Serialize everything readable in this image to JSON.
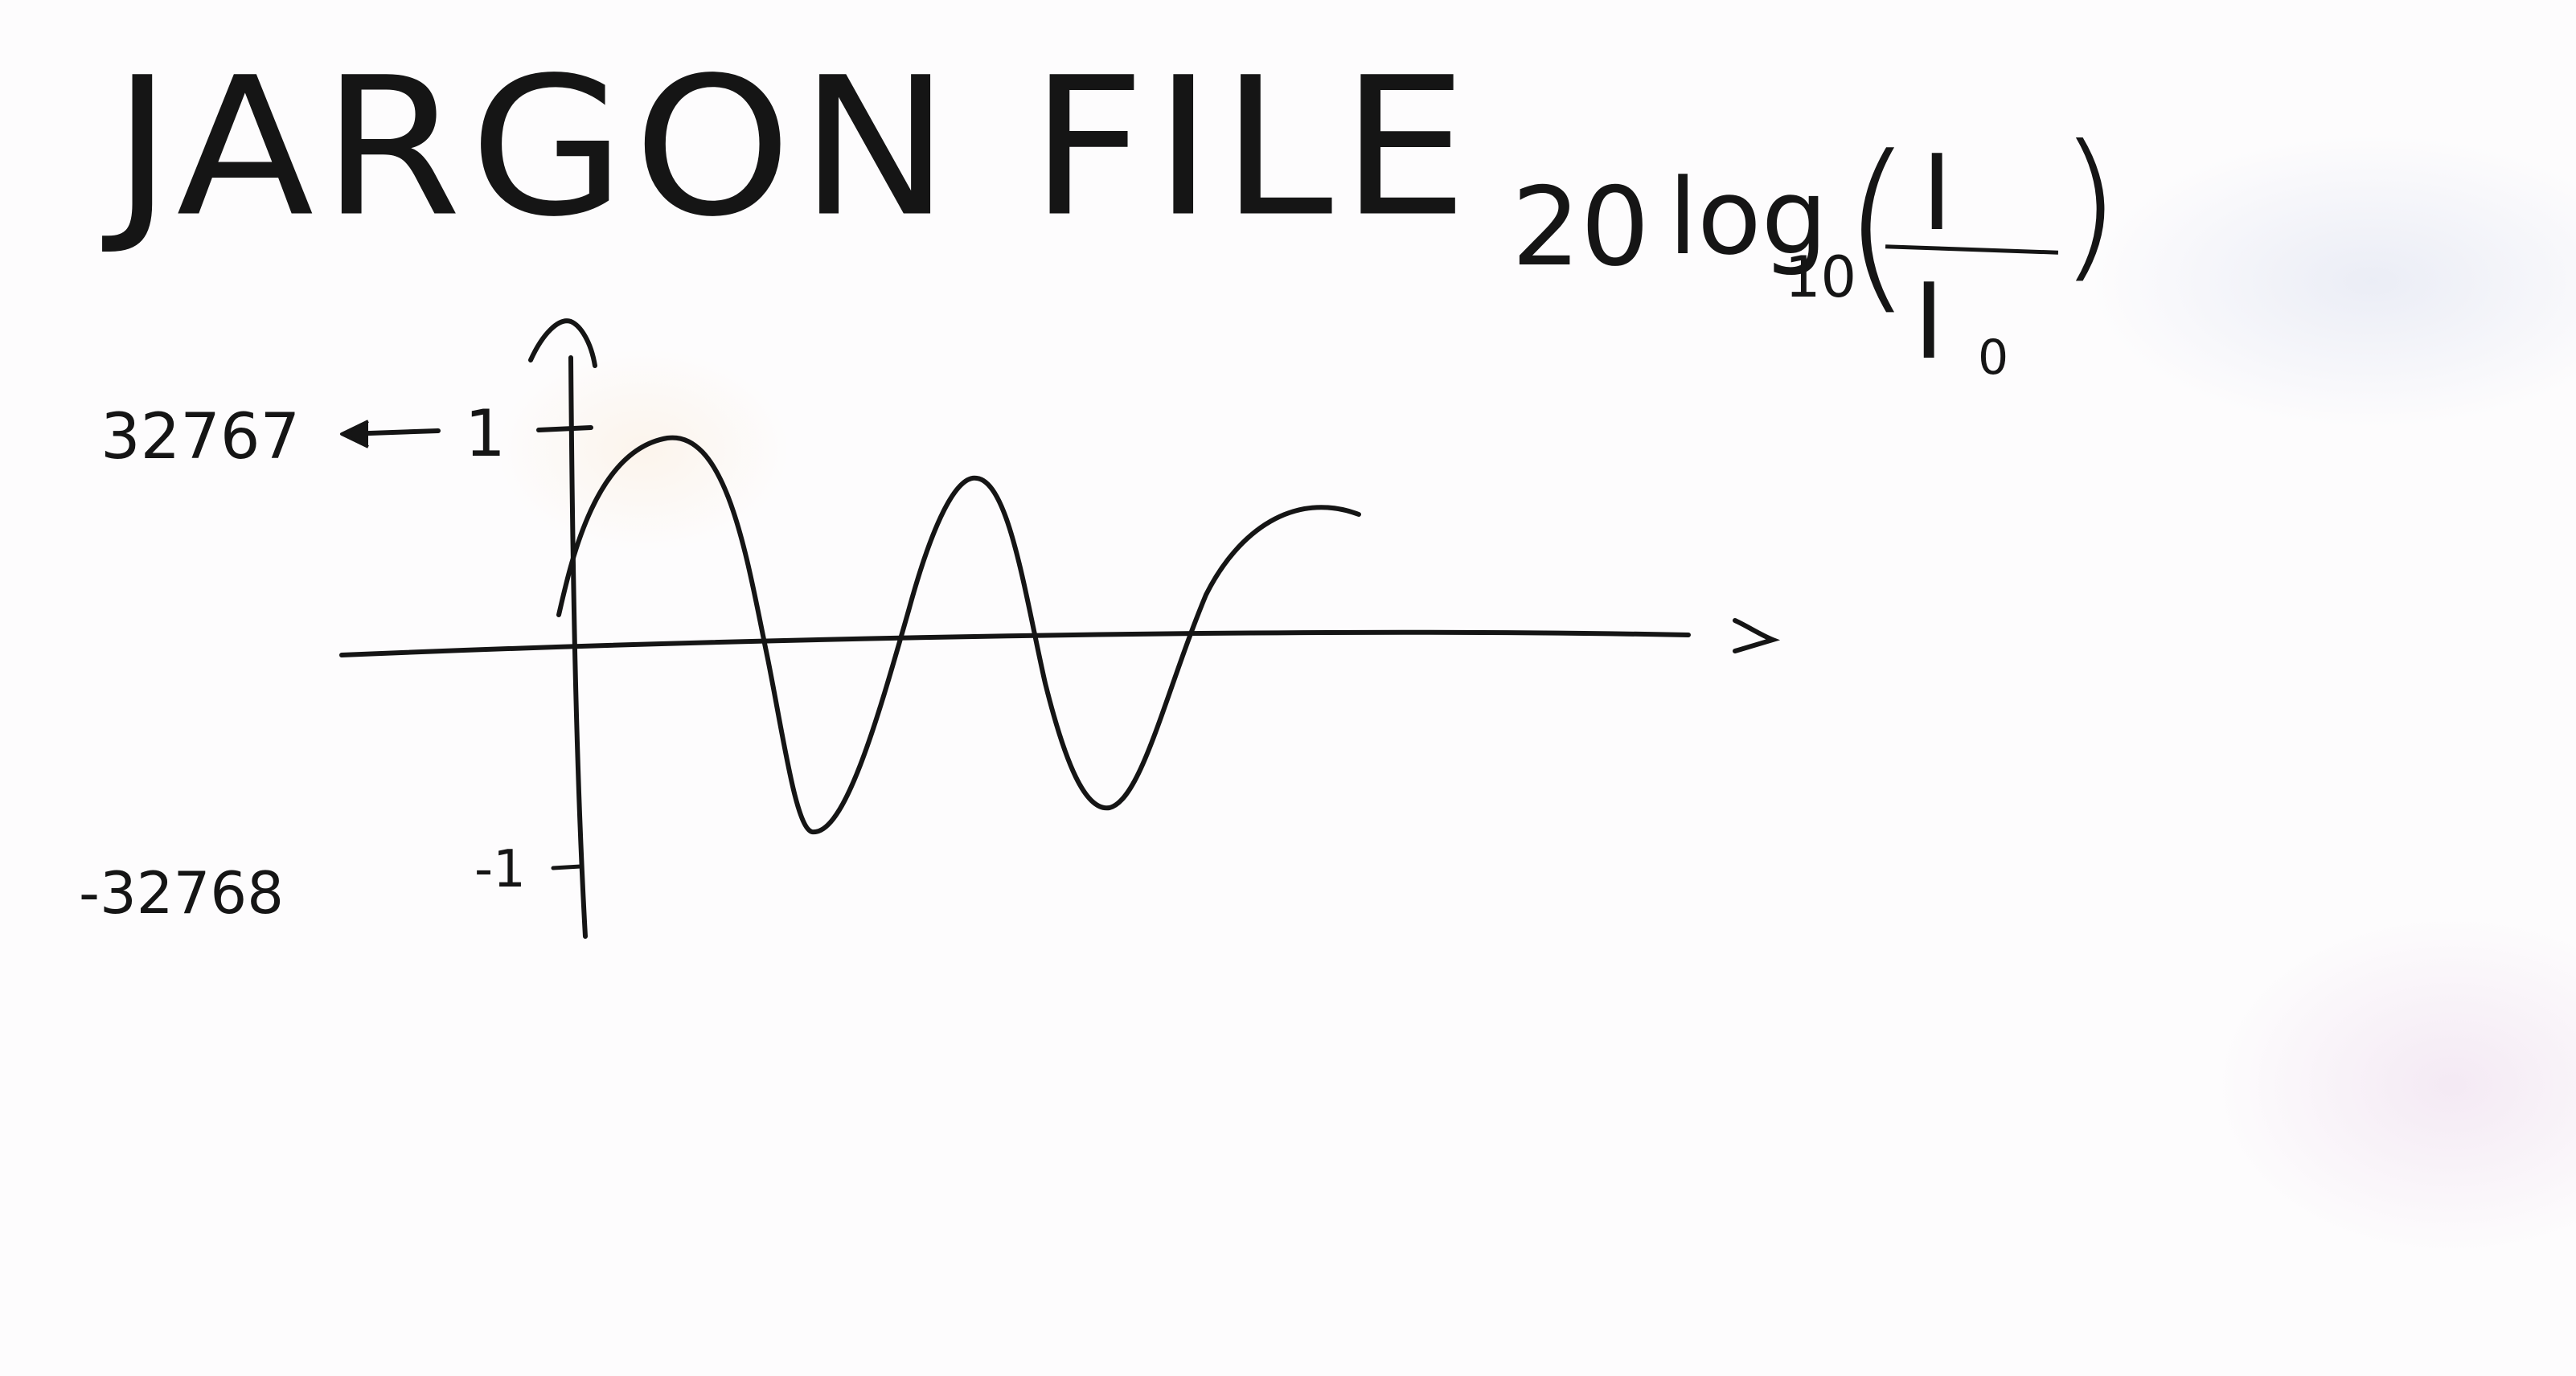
{
  "title": "JARGON FILE",
  "axes": {
    "y_max_tick": "1",
    "y_min_tick": "-1",
    "y_max_raw": "32767",
    "y_min_raw": "-32768",
    "x_arrow_glyph": "→"
  },
  "formula": {
    "coefficient": "20",
    "function": "log",
    "base": "10",
    "numerator": "I",
    "denominator": "I",
    "denominator_sub": "0",
    "paren_left": "(",
    "paren_right": ")"
  },
  "colors": {
    "ink": "#151515",
    "board": "#fdfcfd"
  }
}
